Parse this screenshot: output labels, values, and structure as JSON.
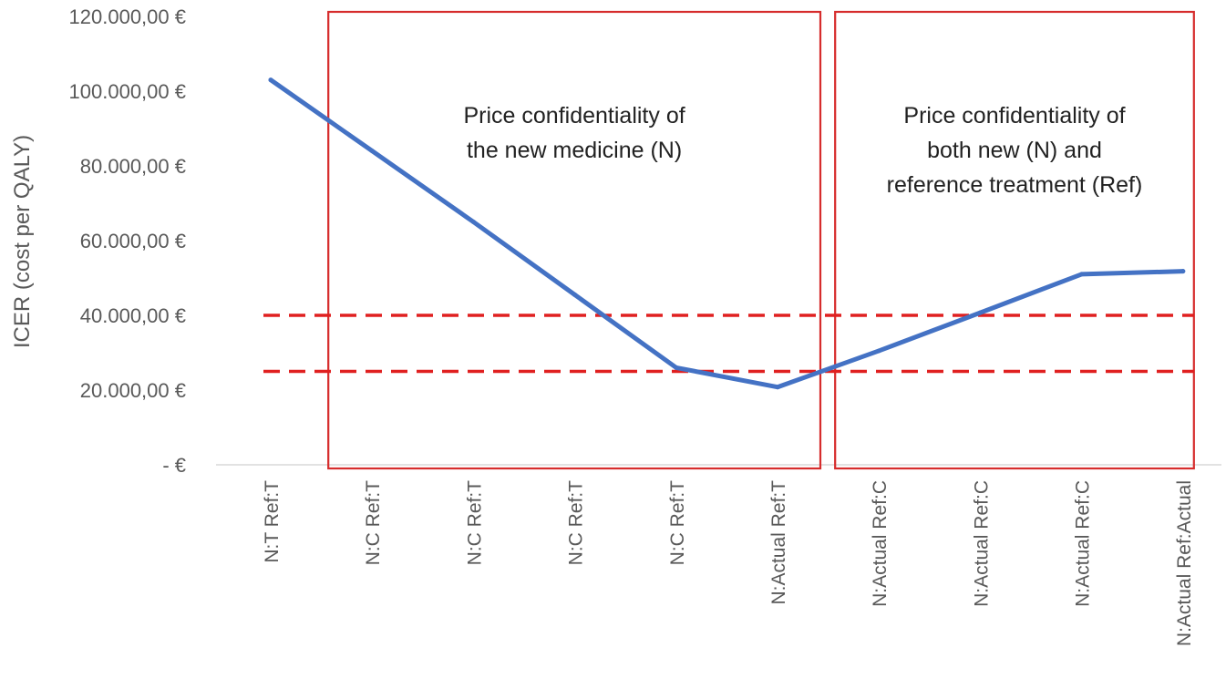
{
  "chart_data": {
    "type": "line",
    "title": "",
    "ylabel": "ICER (cost per QALY)",
    "xlabel": "",
    "ylim": [
      0,
      120000
    ],
    "y_ticks": [
      0,
      20000,
      40000,
      60000,
      80000,
      100000,
      120000
    ],
    "y_tick_labels": [
      "-   €",
      "20.000,00 €",
      "40.000,00 €",
      "60.000,00 €",
      "80.000,00 €",
      "100.000,00 €",
      "120.000,00 €"
    ],
    "categories": [
      "N:T Ref:T",
      "N:C Ref:T",
      "N:C Ref:T",
      "N:C Ref:T",
      "N:C Ref:T",
      "N:Actual Ref:T",
      "N:Actual Ref:C",
      "N:Actual Ref:C",
      "N:Actual Ref:C",
      "N:Actual Ref:Actual"
    ],
    "series": [
      {
        "name": "ICER",
        "color": "#4472C4",
        "values": [
          103000,
          84000,
          65000,
          45500,
          26000,
          20800,
          30500,
          40700,
          51000,
          51800
        ]
      }
    ],
    "thresholds": [
      {
        "value": 40000,
        "color": "#E02020",
        "style": "dashed"
      },
      {
        "value": 25000,
        "color": "#E02020",
        "style": "dashed"
      }
    ],
    "annotations": [
      {
        "lines": [
          "Price confidentiality of",
          "the new medicine (N)"
        ],
        "range_categories": [
          1,
          5
        ],
        "color": "#D62C2C"
      },
      {
        "lines": [
          "Price confidentiality of",
          "both new (N) and",
          "reference treatment (Ref)"
        ],
        "range_categories": [
          6,
          9
        ],
        "color": "#D62C2C"
      }
    ],
    "grid": false,
    "legend": "none"
  }
}
